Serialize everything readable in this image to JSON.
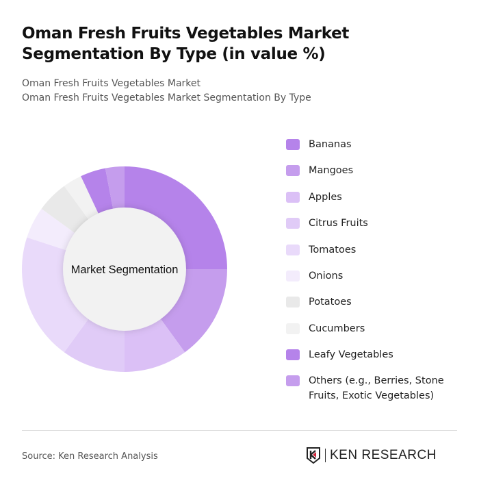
{
  "header": {
    "title": "Oman Fresh Fruits Vegetables Market Segmentation By Type (in value %)",
    "subtitle_1": "Oman Fresh Fruits Vegetables Market",
    "subtitle_2": "Oman Fresh Fruits Vegetables Market Segmentation By Type"
  },
  "chart_data": {
    "type": "pie",
    "variant": "donut",
    "center_label": "Market Segmentation",
    "legend_placement": "right",
    "categories": [
      "Bananas",
      "Mangoes",
      "Apples",
      "Citrus Fruits",
      "Tomatoes",
      "Onions",
      "Potatoes",
      "Cucumbers",
      "Leafy Vegetables",
      "Others (e.g., Berries, Stone Fruits, Exotic Vegetables)"
    ],
    "values": [
      25,
      15,
      10,
      10,
      20,
      5,
      5,
      3,
      4,
      3
    ],
    "colors": [
      "#b583ea",
      "#c59ded",
      "#dbc0f6",
      "#e0cbf7",
      "#e9dafa",
      "#f3ecfc",
      "#e9e9e9",
      "#f2f2f2",
      "#b583ea",
      "#c59ded"
    ]
  },
  "footer": {
    "source": "Source: Ken Research Analysis",
    "logo_text": "KEN RESEARCH"
  }
}
